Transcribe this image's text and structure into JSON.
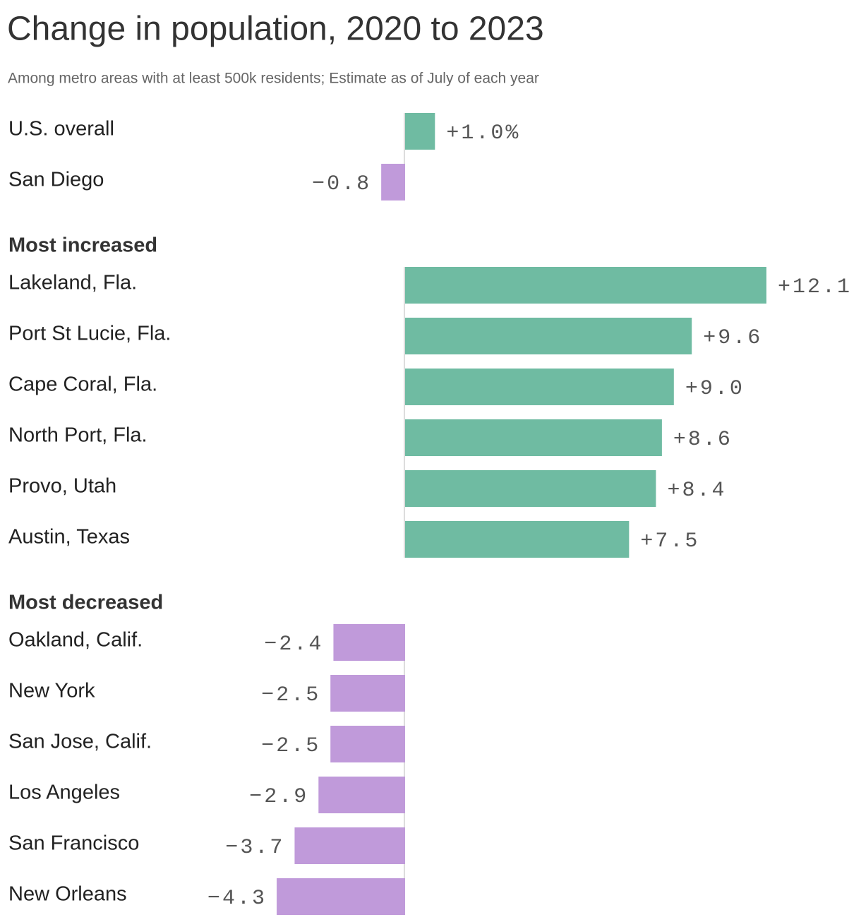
{
  "chart_data": {
    "type": "bar",
    "orientation": "horizontal",
    "title": "Change in population, 2020 to 2023",
    "subtitle": "Among metro areas with at least 500k residents; Estimate as of July of each year",
    "colors": {
      "positive": "#6fbba2",
      "negative": "#c09ada"
    },
    "sections": [
      {
        "categories": [
          "U.S. overall",
          "San Diego"
        ],
        "values": [
          1.0,
          -0.8
        ],
        "value_labels": [
          "+1.0%",
          "−0.8"
        ]
      },
      {
        "title": "Most increased",
        "categories": [
          "Lakeland, Fla.",
          "Port St Lucie, Fla.",
          "Cape Coral, Fla.",
          "North Port, Fla.",
          "Provo, Utah",
          "Austin, Texas"
        ],
        "values": [
          12.1,
          9.6,
          9.0,
          8.6,
          8.4,
          7.5
        ],
        "value_labels": [
          "+12.1",
          "+9.6",
          "+9.0",
          "+8.6",
          "+8.4",
          "+7.5"
        ]
      },
      {
        "title": "Most decreased",
        "categories": [
          "Oakland, Calif.",
          "New York",
          "San Jose, Calif.",
          "Los Angeles",
          "San Francisco",
          "New Orleans"
        ],
        "values": [
          -2.4,
          -2.5,
          -2.5,
          -2.9,
          -3.7,
          -4.3
        ],
        "value_labels": [
          "−2.4",
          "−2.5",
          "−2.5",
          "−2.9",
          "−3.7",
          "−4.3"
        ]
      }
    ]
  }
}
